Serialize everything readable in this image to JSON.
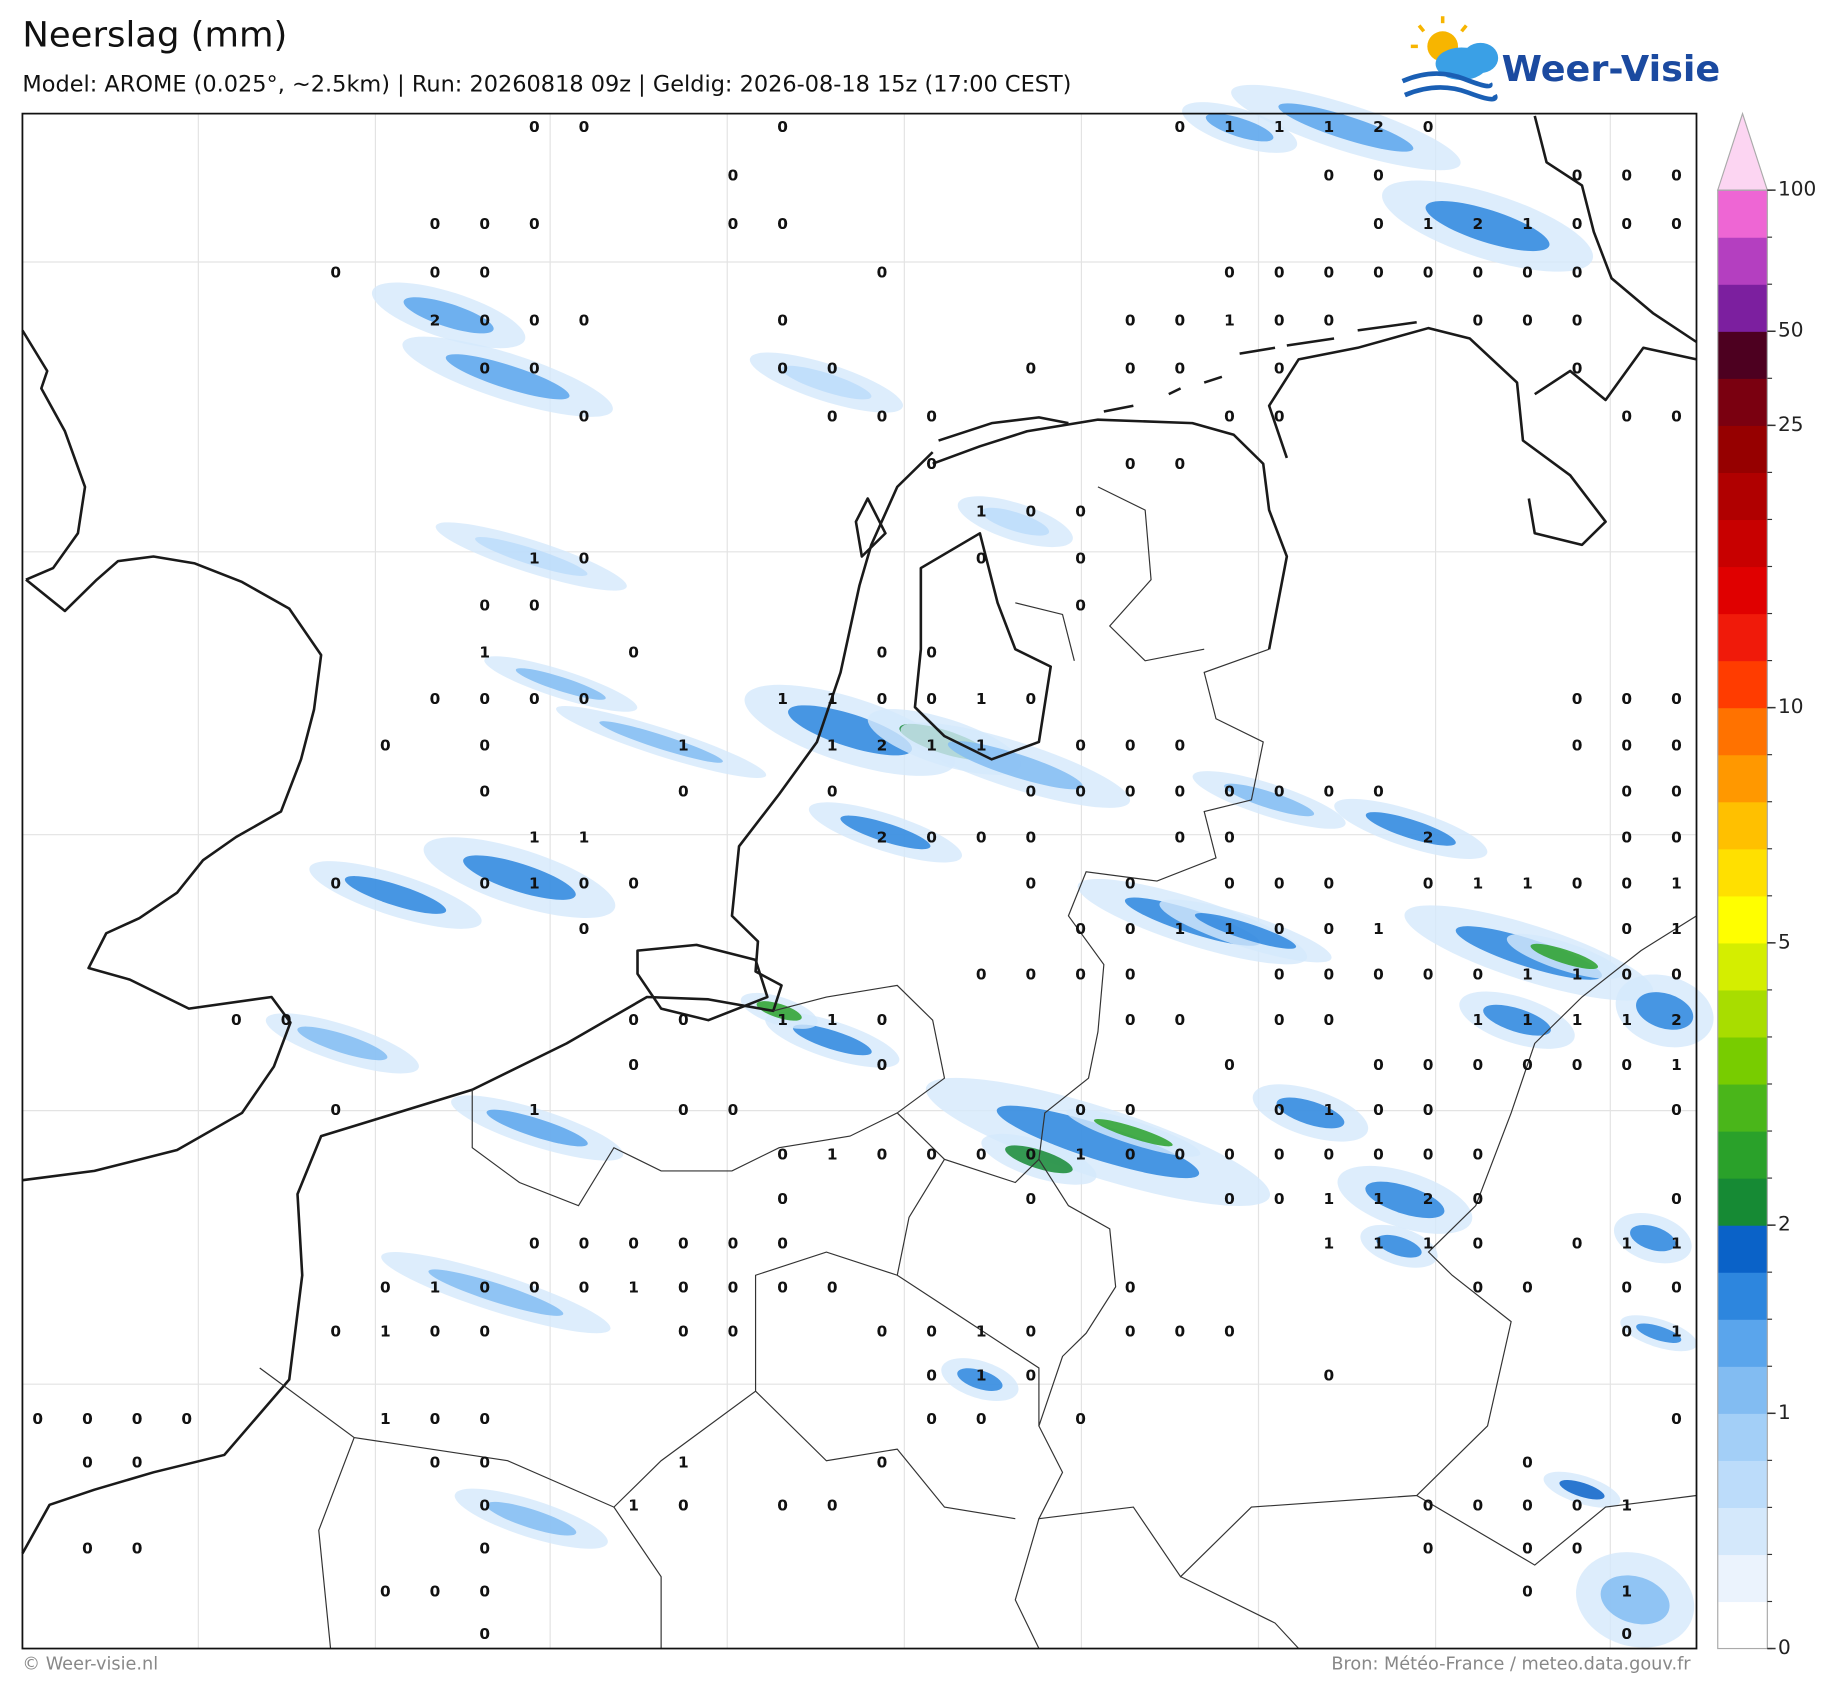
{
  "header": {
    "title": "Neerslag (mm)",
    "subtitle": "Model: AROME (0.025°, ~2.5km)  |  Run: 20260818 09z  |  Geldig: 2026-08-18 15z (17:00 CEST)"
  },
  "logo": {
    "text": "Weer-Visie"
  },
  "map": {
    "label_rows": [
      [
        null,
        null,
        null,
        null,
        null,
        null,
        null,
        null,
        null,
        null,
        0,
        0,
        null,
        null,
        null,
        0,
        null,
        null,
        null,
        null,
        null,
        null,
        null,
        0,
        1,
        1,
        1,
        2,
        0,
        null,
        null,
        null,
        null,
        null
      ],
      [
        null,
        null,
        null,
        null,
        null,
        null,
        null,
        null,
        null,
        null,
        null,
        null,
        null,
        null,
        0,
        null,
        null,
        null,
        null,
        null,
        null,
        null,
        null,
        null,
        null,
        null,
        0,
        0,
        null,
        null,
        null,
        0,
        0,
        0
      ],
      [
        null,
        null,
        null,
        null,
        null,
        null,
        null,
        null,
        0,
        0,
        0,
        null,
        null,
        null,
        0,
        0,
        null,
        null,
        null,
        null,
        null,
        null,
        null,
        null,
        null,
        null,
        null,
        0,
        1,
        2,
        1,
        0,
        0,
        0
      ],
      [
        null,
        null,
        null,
        null,
        null,
        null,
        0,
        null,
        0,
        0,
        null,
        null,
        null,
        null,
        null,
        null,
        null,
        0,
        null,
        null,
        null,
        null,
        null,
        null,
        0,
        0,
        0,
        0,
        0,
        0,
        0,
        0,
        null,
        null
      ],
      [
        null,
        null,
        null,
        null,
        null,
        null,
        null,
        null,
        2,
        0,
        0,
        0,
        null,
        null,
        null,
        0,
        null,
        null,
        null,
        null,
        null,
        null,
        0,
        0,
        1,
        0,
        0,
        null,
        null,
        0,
        0,
        0,
        null,
        null
      ],
      [
        null,
        null,
        null,
        null,
        null,
        null,
        null,
        null,
        null,
        0,
        0,
        null,
        null,
        null,
        null,
        0,
        0,
        null,
        null,
        null,
        0,
        null,
        0,
        0,
        null,
        0,
        null,
        null,
        null,
        null,
        null,
        0,
        null,
        null
      ],
      [
        null,
        null,
        null,
        null,
        null,
        null,
        null,
        null,
        null,
        null,
        null,
        0,
        null,
        null,
        null,
        null,
        0,
        0,
        0,
        null,
        null,
        null,
        null,
        null,
        0,
        0,
        null,
        null,
        null,
        null,
        null,
        null,
        0,
        0
      ],
      [
        null,
        null,
        null,
        null,
        null,
        null,
        null,
        null,
        null,
        null,
        null,
        null,
        null,
        null,
        null,
        null,
        null,
        null,
        0,
        null,
        null,
        null,
        0,
        0,
        null,
        null,
        null,
        null,
        null,
        null,
        null,
        null,
        null,
        null
      ],
      [
        null,
        null,
        null,
        null,
        null,
        null,
        null,
        null,
        null,
        null,
        null,
        null,
        null,
        null,
        null,
        null,
        null,
        null,
        null,
        1,
        0,
        0,
        null,
        null,
        null,
        null,
        null,
        null,
        null,
        null,
        null,
        null,
        null,
        null
      ],
      [
        null,
        null,
        null,
        null,
        null,
        null,
        null,
        null,
        null,
        null,
        1,
        0,
        null,
        null,
        null,
        null,
        null,
        null,
        null,
        0,
        null,
        0,
        null,
        null,
        null,
        null,
        null,
        null,
        null,
        null,
        null,
        null,
        null,
        null
      ],
      [
        null,
        null,
        null,
        null,
        null,
        null,
        null,
        null,
        null,
        0,
        0,
        null,
        null,
        null,
        null,
        null,
        null,
        null,
        null,
        null,
        null,
        0,
        null,
        null,
        null,
        null,
        null,
        null,
        null,
        null,
        null,
        null,
        null,
        null
      ],
      [
        null,
        null,
        null,
        null,
        null,
        null,
        null,
        null,
        null,
        1,
        null,
        null,
        0,
        null,
        null,
        null,
        null,
        0,
        0,
        null,
        null,
        null,
        null,
        null,
        null,
        null,
        null,
        null,
        null,
        null,
        null,
        null,
        null,
        null
      ],
      [
        null,
        null,
        null,
        null,
        null,
        null,
        null,
        null,
        0,
        0,
        0,
        0,
        null,
        null,
        null,
        1,
        1,
        0,
        0,
        1,
        0,
        null,
        null,
        null,
        null,
        null,
        null,
        null,
        null,
        null,
        null,
        0,
        0,
        0
      ],
      [
        null,
        null,
        null,
        null,
        null,
        null,
        null,
        0,
        null,
        0,
        null,
        null,
        null,
        1,
        null,
        null,
        1,
        2,
        1,
        1,
        null,
        0,
        0,
        0,
        null,
        null,
        null,
        null,
        null,
        null,
        null,
        0,
        0,
        0
      ],
      [
        null,
        null,
        null,
        null,
        null,
        null,
        null,
        null,
        null,
        0,
        null,
        null,
        null,
        0,
        null,
        null,
        0,
        null,
        null,
        null,
        0,
        0,
        0,
        0,
        0,
        0,
        0,
        0,
        null,
        null,
        null,
        null,
        0,
        0
      ],
      [
        null,
        null,
        null,
        null,
        null,
        null,
        null,
        null,
        null,
        null,
        1,
        1,
        null,
        null,
        null,
        null,
        null,
        2,
        0,
        0,
        0,
        null,
        null,
        0,
        0,
        null,
        null,
        null,
        2,
        null,
        null,
        null,
        0,
        0
      ],
      [
        null,
        null,
        null,
        null,
        null,
        null,
        0,
        null,
        null,
        0,
        1,
        0,
        0,
        null,
        null,
        null,
        null,
        null,
        null,
        null,
        0,
        null,
        0,
        null,
        0,
        0,
        0,
        null,
        0,
        1,
        1,
        0,
        0,
        1
      ],
      [
        null,
        null,
        null,
        null,
        null,
        null,
        null,
        null,
        null,
        null,
        null,
        0,
        null,
        null,
        null,
        null,
        null,
        null,
        null,
        null,
        null,
        0,
        0,
        1,
        1,
        0,
        0,
        1,
        null,
        null,
        null,
        null,
        0,
        1
      ],
      [
        null,
        null,
        null,
        null,
        null,
        null,
        null,
        null,
        null,
        null,
        null,
        null,
        null,
        null,
        null,
        null,
        null,
        null,
        null,
        0,
        0,
        0,
        0,
        null,
        null,
        0,
        0,
        0,
        0,
        0,
        1,
        1,
        0,
        0
      ],
      [
        null,
        null,
        null,
        null,
        0,
        0,
        null,
        null,
        null,
        null,
        null,
        null,
        0,
        0,
        null,
        1,
        1,
        0,
        null,
        null,
        null,
        null,
        0,
        0,
        null,
        0,
        0,
        null,
        null,
        1,
        1,
        1,
        1,
        2
      ],
      [
        null,
        null,
        null,
        null,
        null,
        null,
        null,
        null,
        null,
        null,
        null,
        null,
        0,
        null,
        null,
        null,
        null,
        0,
        null,
        null,
        null,
        null,
        null,
        null,
        0,
        null,
        null,
        0,
        0,
        0,
        0,
        0,
        0,
        1
      ],
      [
        null,
        null,
        null,
        null,
        null,
        null,
        0,
        null,
        null,
        null,
        1,
        null,
        null,
        0,
        0,
        null,
        null,
        null,
        null,
        null,
        null,
        0,
        0,
        null,
        null,
        0,
        1,
        0,
        0,
        null,
        null,
        null,
        null,
        0
      ],
      [
        null,
        null,
        null,
        null,
        null,
        null,
        null,
        null,
        null,
        null,
        null,
        null,
        null,
        null,
        null,
        0,
        1,
        0,
        0,
        0,
        0,
        1,
        0,
        0,
        0,
        0,
        0,
        0,
        0,
        0,
        null,
        null,
        null,
        null
      ],
      [
        null,
        null,
        null,
        null,
        null,
        null,
        null,
        null,
        null,
        null,
        null,
        null,
        null,
        null,
        null,
        0,
        null,
        null,
        null,
        null,
        0,
        null,
        null,
        null,
        0,
        0,
        1,
        1,
        2,
        0,
        null,
        null,
        null,
        0
      ],
      [
        null,
        null,
        null,
        null,
        null,
        null,
        null,
        null,
        null,
        null,
        0,
        0,
        0,
        0,
        0,
        0,
        null,
        null,
        null,
        null,
        null,
        null,
        null,
        null,
        null,
        null,
        1,
        1,
        1,
        0,
        null,
        0,
        1,
        1
      ],
      [
        null,
        null,
        null,
        null,
        null,
        null,
        null,
        0,
        1,
        0,
        0,
        0,
        1,
        0,
        0,
        0,
        0,
        null,
        null,
        null,
        null,
        null,
        0,
        null,
        null,
        null,
        null,
        null,
        null,
        0,
        0,
        null,
        0,
        0
      ],
      [
        null,
        null,
        null,
        null,
        null,
        null,
        0,
        1,
        0,
        0,
        null,
        null,
        null,
        0,
        0,
        null,
        null,
        0,
        0,
        1,
        0,
        null,
        0,
        0,
        0,
        null,
        null,
        null,
        null,
        null,
        null,
        null,
        0,
        1
      ],
      [
        null,
        null,
        null,
        null,
        null,
        null,
        null,
        null,
        null,
        null,
        null,
        null,
        null,
        null,
        null,
        null,
        null,
        null,
        0,
        1,
        0,
        null,
        null,
        null,
        null,
        null,
        0,
        null,
        null,
        null,
        null,
        null,
        null,
        null
      ],
      [
        0,
        0,
        0,
        0,
        null,
        null,
        null,
        1,
        0,
        0,
        null,
        null,
        null,
        null,
        null,
        null,
        null,
        null,
        0,
        0,
        null,
        0,
        null,
        null,
        null,
        null,
        null,
        null,
        null,
        null,
        null,
        null,
        null,
        0
      ],
      [
        null,
        0,
        0,
        null,
        null,
        null,
        null,
        null,
        0,
        0,
        null,
        null,
        null,
        1,
        null,
        null,
        null,
        0,
        null,
        null,
        null,
        null,
        null,
        null,
        null,
        null,
        null,
        null,
        null,
        null,
        0,
        null,
        null,
        null
      ],
      [
        null,
        null,
        null,
        null,
        null,
        null,
        null,
        null,
        null,
        0,
        null,
        null,
        1,
        0,
        null,
        0,
        0,
        null,
        null,
        null,
        null,
        null,
        null,
        null,
        null,
        null,
        null,
        null,
        0,
        0,
        0,
        0,
        1,
        null
      ],
      [
        null,
        0,
        0,
        null,
        null,
        null,
        null,
        null,
        null,
        0,
        null,
        null,
        null,
        null,
        null,
        null,
        null,
        null,
        null,
        null,
        null,
        null,
        null,
        null,
        null,
        null,
        null,
        null,
        0,
        null,
        0,
        0,
        null,
        null
      ],
      [
        null,
        null,
        null,
        null,
        null,
        null,
        null,
        0,
        0,
        0,
        null,
        null,
        null,
        null,
        null,
        null,
        null,
        null,
        null,
        null,
        null,
        null,
        null,
        null,
        null,
        null,
        null,
        null,
        null,
        null,
        0,
        null,
        1,
        null
      ],
      [
        null,
        null,
        null,
        null,
        null,
        null,
        null,
        null,
        null,
        0,
        null,
        null,
        null,
        null,
        null,
        null,
        null,
        null,
        null,
        null,
        null,
        null,
        null,
        null,
        null,
        null,
        null,
        null,
        null,
        null,
        null,
        null,
        0,
        null
      ]
    ]
  },
  "colorbar": {
    "levels": [
      0,
      0.2,
      0.4,
      0.6,
      0.8,
      1,
      1.25,
      1.5,
      1.75,
      2,
      2.5,
      3,
      3.5,
      4,
      4.5,
      5,
      6,
      7,
      8,
      9,
      10,
      12.5,
      15,
      17.5,
      20,
      22.5,
      25,
      35,
      50,
      60,
      75,
      100
    ],
    "colors": [
      "#ffffff",
      "#ebf3fd",
      "#d4e8fb",
      "#bcdcfa",
      "#a3cff7",
      "#82bcf2",
      "#5aa5ec",
      "#2d86de",
      "#0a62c8",
      "#168a34",
      "#2aa12a",
      "#4ab61a",
      "#78cc00",
      "#a8dd00",
      "#d4ee00",
      "#ffff00",
      "#ffe000",
      "#ffc000",
      "#ff9800",
      "#ff7200",
      "#ff3c00",
      "#f01a0a",
      "#e00000",
      "#c80000",
      "#b00000",
      "#960000",
      "#7a0010",
      "#4d0020",
      "#7c1f9f",
      "#b43fc0",
      "#ee66d4"
    ],
    "extend_color": "#fcd5f2",
    "ticks": [
      0,
      1,
      2,
      5,
      10,
      25,
      50,
      100
    ]
  },
  "footer": {
    "left": "© Weer-visie.nl",
    "right": "Bron: Météo-France / meteo.data.gouv.fr"
  }
}
